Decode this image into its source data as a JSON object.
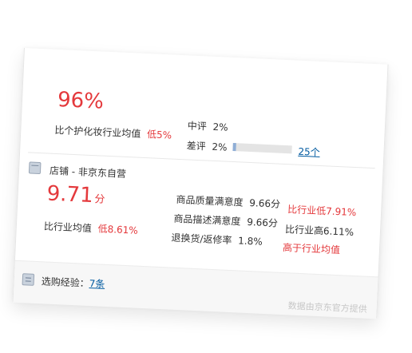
{
  "rating": {
    "good_rate": "96%",
    "compare_label": "比个护化妆行业均值",
    "compare_value": "低5%",
    "mid_label": "中评",
    "mid_pct": "2%",
    "bad_label": "差评",
    "bad_pct": "2%",
    "bad_fill": 0.02,
    "bad_count": "25个"
  },
  "shop": {
    "title": "店铺 - 非京东自营",
    "score": "9.71",
    "score_unit": "分",
    "compare_label": "比行业均值",
    "compare_value": "低8.61%",
    "metrics": [
      {
        "label": "商品质量满意度",
        "value": "9.66分",
        "compare": "比行业低7.91%",
        "color": "#e4393c"
      },
      {
        "label": "商品描述满意度",
        "value": "9.66分",
        "compare": "比行业高6.11%",
        "color": "#333333"
      },
      {
        "label": "退换货/返修率",
        "value": "1.8%",
        "compare": "高于行业均值",
        "color": "#e4393c"
      }
    ]
  },
  "experience": {
    "label": "选购经验：",
    "link": "7条"
  },
  "footer": {
    "note": "数据由京东官方提供"
  }
}
